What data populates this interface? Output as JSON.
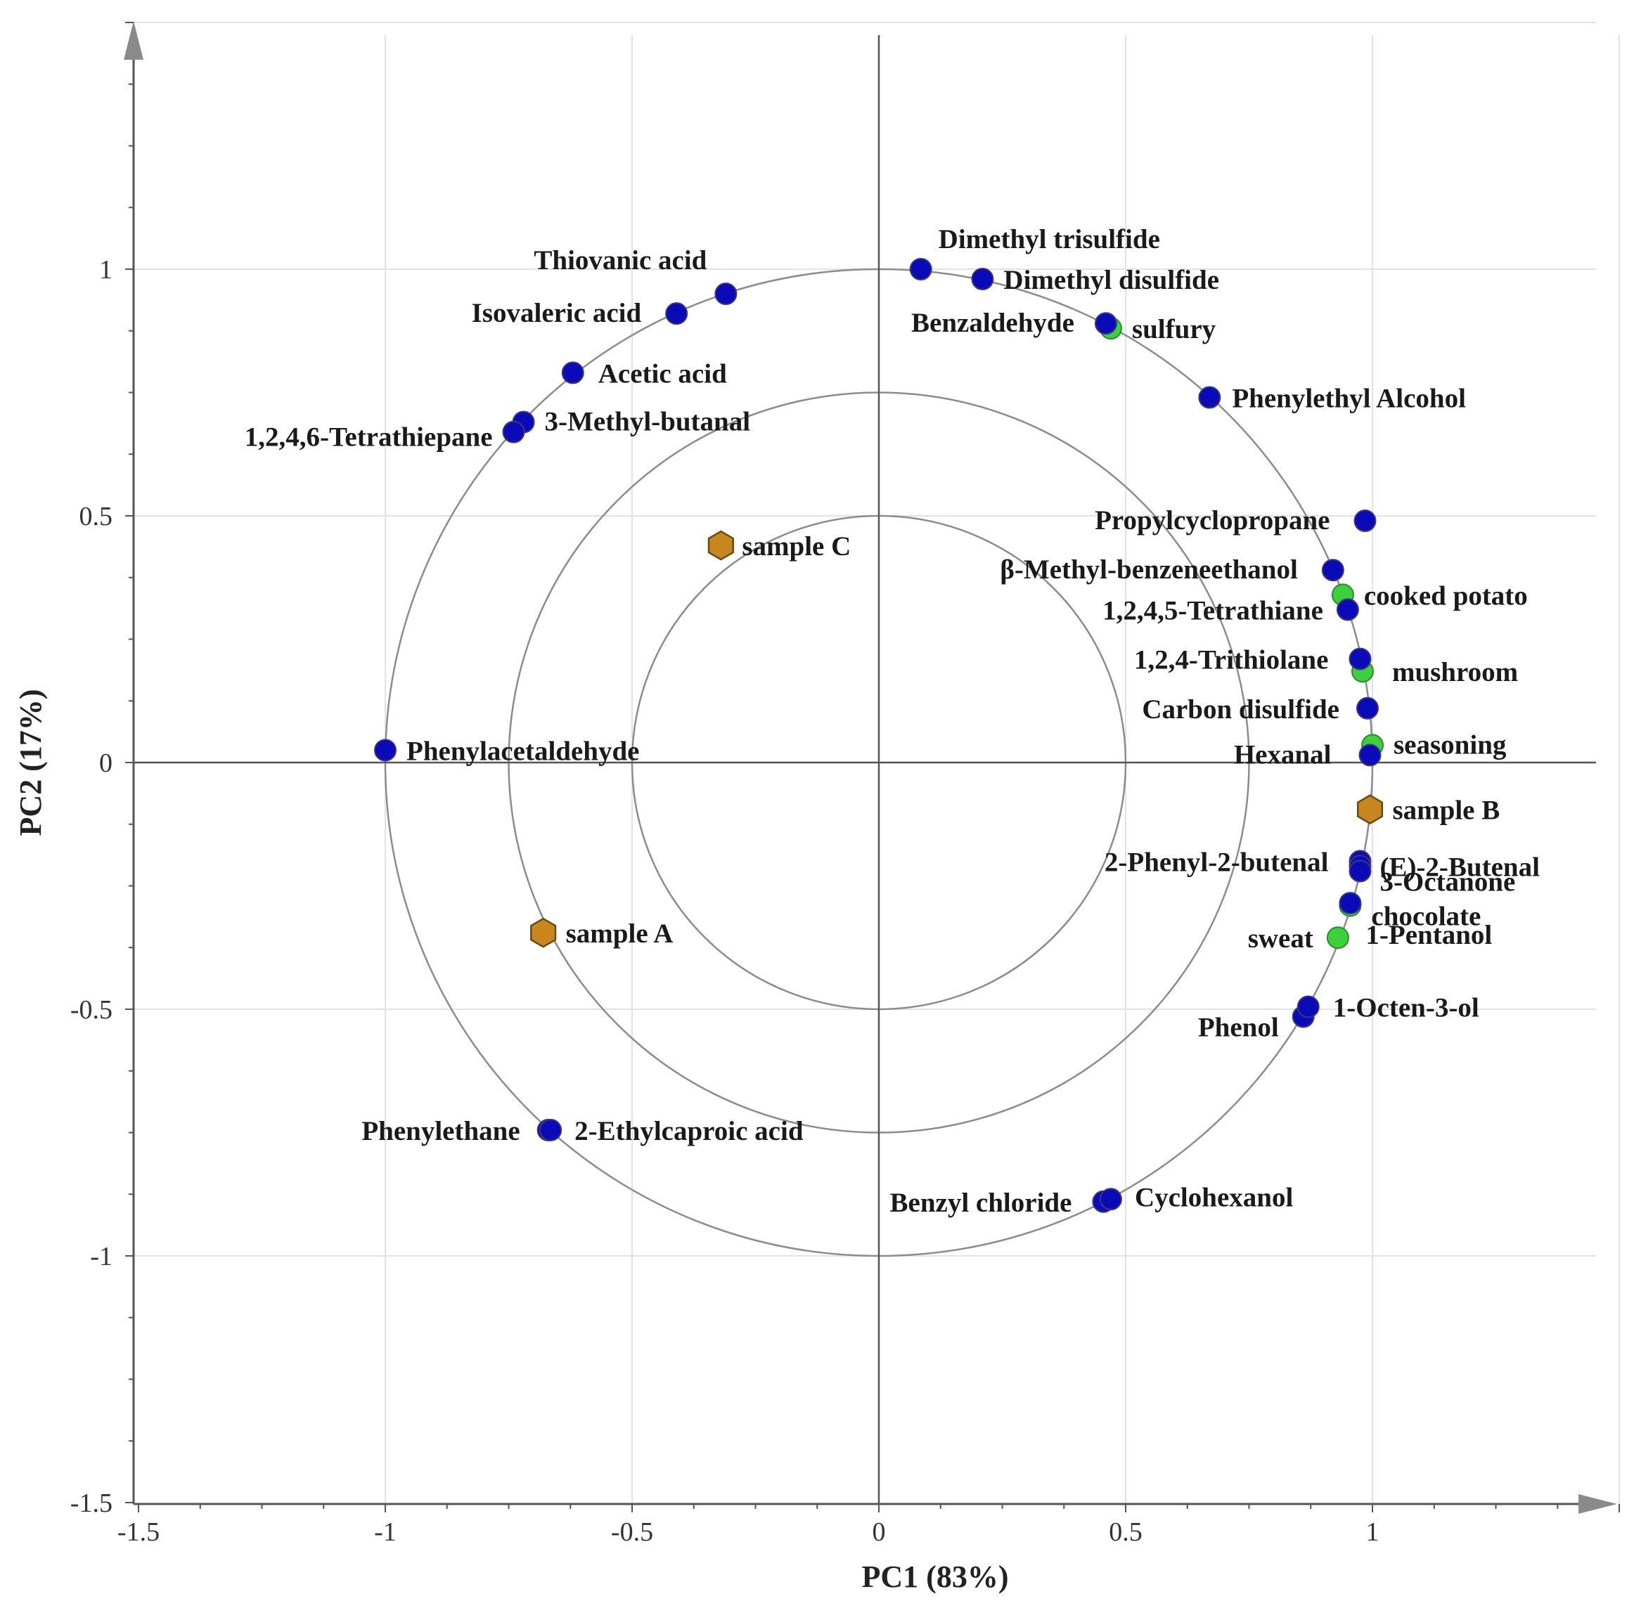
{
  "chart_data": {
    "type": "scatter",
    "title": "",
    "xlabel": "PC1 (83%)",
    "ylabel": "PC2 (17%)",
    "xlim": [
      -1.5,
      1.5
    ],
    "ylim": [
      -1.5,
      1.5
    ],
    "x_ticks": [
      "-1.5",
      "-1",
      "-0.5",
      "0",
      "0.5",
      "1"
    ],
    "y_ticks": [
      "-1.5",
      "-1",
      "-0.5",
      "0",
      "0.5",
      "1"
    ],
    "grid": true,
    "correlation_circles": [
      1.0,
      0.75,
      0.5
    ],
    "colors": {
      "compound": "#0a0ab8",
      "attribute": "#3cd13c",
      "sample": "#c8861e"
    },
    "series": [
      {
        "name": "compounds",
        "marker": "circle",
        "points": [
          {
            "label": "Thiovanic acid",
            "x": -0.31,
            "y": 0.95
          },
          {
            "label": "Isovaleric acid",
            "x": -0.41,
            "y": 0.91
          },
          {
            "label": "Acetic acid",
            "x": -0.62,
            "y": 0.79
          },
          {
            "label": "3-Methyl-butanal",
            "x": -0.72,
            "y": 0.69
          },
          {
            "label": "1,2,4,6-Tetrathiepane",
            "x": -0.74,
            "y": 0.67
          },
          {
            "label": "Dimethyl trisulfide",
            "x": 0.085,
            "y": 1.0
          },
          {
            "label": "Dimethyl disulfide",
            "x": 0.21,
            "y": 0.98
          },
          {
            "label": "Benzaldehyde",
            "x": 0.46,
            "y": 0.89
          },
          {
            "label": "Phenylethyl Alcohol",
            "x": 0.67,
            "y": 0.74
          },
          {
            "label": "Propylcyclopropane",
            "x": 0.985,
            "y": 0.49
          },
          {
            "label": "β-Methyl-benzeneethanol",
            "x": 0.92,
            "y": 0.39
          },
          {
            "label": "1,2,4,5-Tetrathiane",
            "x": 0.95,
            "y": 0.31
          },
          {
            "label": "1,2,4-Trithiolane",
            "x": 0.975,
            "y": 0.21
          },
          {
            "label": "Carbon disulfide",
            "x": 0.99,
            "y": 0.11
          },
          {
            "label": "Hexanal",
            "x": 0.995,
            "y": 0.015
          },
          {
            "label": "Phenylacetaldehyde",
            "x": -1.0,
            "y": 0.025
          },
          {
            "label": "2-Phenyl-2-butenal",
            "x": 0.975,
            "y": -0.2
          },
          {
            "label": "(E)-2-Butenal",
            "x": 0.975,
            "y": -0.21
          },
          {
            "label": "3-Octanone",
            "x": 0.975,
            "y": -0.22
          },
          {
            "label": "1-Pentanol",
            "x": 0.955,
            "y": -0.285
          },
          {
            "label": "Phenol",
            "x": 0.86,
            "y": -0.515
          },
          {
            "label": "1-Octen-3-ol",
            "x": 0.87,
            "y": -0.495
          },
          {
            "label": "Phenylethane",
            "x": -0.67,
            "y": -0.745
          },
          {
            "label": "2-Ethylcaproic acid",
            "x": -0.665,
            "y": -0.745
          },
          {
            "label": "Benzyl chloride",
            "x": 0.455,
            "y": -0.89
          },
          {
            "label": "Cyclohexanol",
            "x": 0.47,
            "y": -0.885
          }
        ]
      },
      {
        "name": "sensory attributes",
        "marker": "circle",
        "points": [
          {
            "label": "sulfury",
            "x": 0.47,
            "y": 0.88
          },
          {
            "label": "cooked potato",
            "x": 0.94,
            "y": 0.34
          },
          {
            "label": "mushroom",
            "x": 0.98,
            "y": 0.185
          },
          {
            "label": "seasoning",
            "x": 1.0,
            "y": 0.035
          },
          {
            "label": "chocolate",
            "x": 0.955,
            "y": -0.29
          },
          {
            "label": "sweat",
            "x": 0.93,
            "y": -0.355
          }
        ]
      },
      {
        "name": "samples",
        "marker": "hexagon",
        "points": [
          {
            "label": "sample C",
            "x": -0.32,
            "y": 0.44
          },
          {
            "label": "sample B",
            "x": 0.995,
            "y": -0.095
          },
          {
            "label": "sample A",
            "x": -0.68,
            "y": -0.345
          }
        ]
      }
    ]
  }
}
